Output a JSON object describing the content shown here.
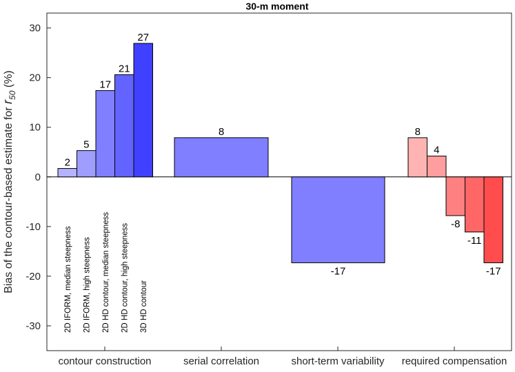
{
  "chart_data": {
    "type": "bar",
    "title": "30-m moment",
    "ylabel": {
      "prefix": "Bias of the contour-based estimate for ",
      "symbol": "r",
      "subscript": "50",
      "suffix": " (%)"
    },
    "xlabel": "",
    "ylim": [
      -35,
      33
    ],
    "yticks": [
      -30,
      -20,
      -10,
      0,
      10,
      20,
      30
    ],
    "ytick_labels": [
      "-30",
      "-20",
      "-10",
      "0",
      "10",
      "20",
      "30"
    ],
    "grid": false,
    "groups": [
      {
        "label": "contour construction",
        "bars": [
          {
            "value": 1.7,
            "data_label": "2",
            "rotated_label": "2D IFORM, median steepness",
            "color": "#b3b3ff"
          },
          {
            "value": 5.3,
            "data_label": "5",
            "rotated_label": "2D IFORM, high steepness",
            "color": "#9e9eff"
          },
          {
            "value": 17.4,
            "data_label": "17",
            "rotated_label": "2D HD contour, median steepness",
            "color": "#7f7fff"
          },
          {
            "value": 20.6,
            "data_label": "21",
            "rotated_label": "2D HD contour, high steepness",
            "color": "#6363ff"
          },
          {
            "value": 26.9,
            "data_label": "27",
            "rotated_label": "3D HD contour",
            "color": "#4040ff"
          }
        ]
      },
      {
        "label": "serial correlation",
        "bars": [
          {
            "value": 7.9,
            "data_label": "8",
            "color": "#7f7fff"
          }
        ]
      },
      {
        "label": "short-term variability",
        "bars": [
          {
            "value": -17.3,
            "data_label": "-17",
            "color": "#7f7fff"
          }
        ]
      },
      {
        "label": "required compensation",
        "bars": [
          {
            "value": 7.9,
            "data_label": "8",
            "color": "#ffb3b3"
          },
          {
            "value": 4.2,
            "data_label": "4",
            "color": "#ff9e9e"
          },
          {
            "value": -7.8,
            "data_label": "-8",
            "color": "#ff8080"
          },
          {
            "value": -11.1,
            "data_label": "-11",
            "color": "#ff6666"
          },
          {
            "value": -17.3,
            "data_label": "-17",
            "color": "#ff4d4d"
          }
        ]
      }
    ]
  }
}
